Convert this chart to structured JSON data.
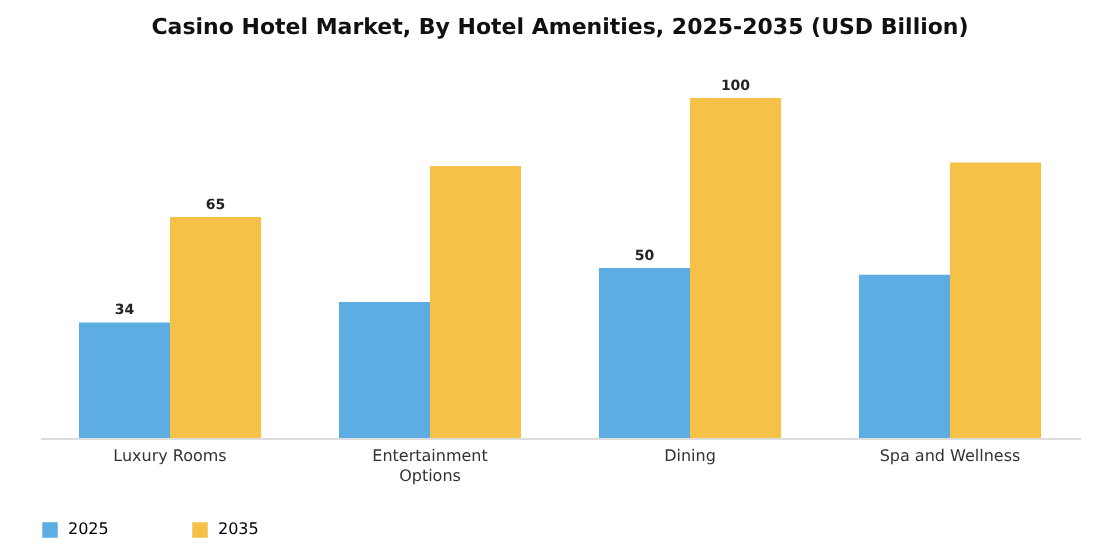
{
  "chart_data": {
    "type": "bar",
    "title": "Casino Hotel Market, By Hotel Amenities, 2025-2035 (USD Billion)",
    "categories": [
      "Luxury Rooms",
      "Entertainment Options",
      "Dining",
      "Spa and Wellness"
    ],
    "ylim": [
      0,
      100
    ],
    "series": [
      {
        "name": "2025",
        "color": "#5dade2",
        "values": [
          34,
          40,
          50,
          48
        ],
        "value_labels": [
          "34",
          null,
          "50",
          null
        ]
      },
      {
        "name": "2035",
        "color": "#f5c146",
        "values": [
          65,
          80,
          100,
          81
        ],
        "value_labels": [
          "65",
          null,
          "100",
          null
        ]
      }
    ],
    "legend": "bottom"
  }
}
